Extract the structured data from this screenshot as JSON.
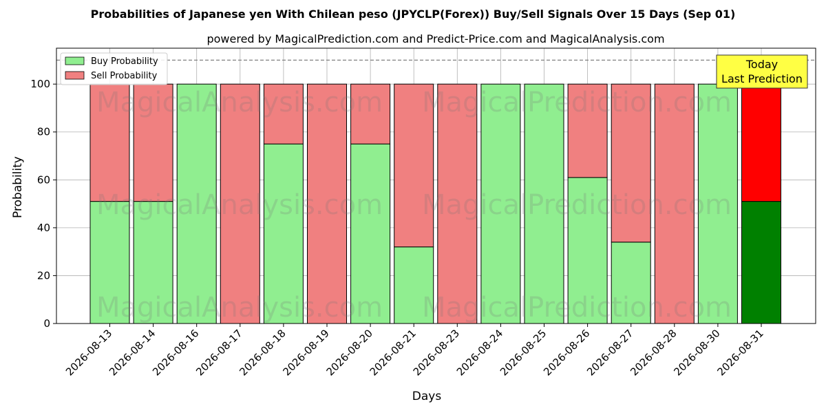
{
  "title": "Probabilities of Japanese yen With Chilean peso (JPYCLP(Forex)) Buy/Sell Signals Over 15 Days (Sep 01)",
  "subtitle": "powered by MagicalPrediction.com and Predict-Price.com and MagicalAnalysis.com",
  "watermarks": [
    "MagicalAnalysis.com",
    "MagicalPrediction.com"
  ],
  "annotation": {
    "line1": "Today",
    "line2": "Last Prediction"
  },
  "colors": {
    "buy": "#90ee90",
    "sell": "#f08080",
    "buy_today": "#008000",
    "sell_today": "#ff0000",
    "annotation_bg": "#ffff44"
  },
  "chart_data": {
    "type": "bar",
    "stacked": true,
    "xlabel": "Days",
    "ylabel": "Probability",
    "ylim": [
      0,
      115
    ],
    "yticks": [
      0,
      20,
      40,
      60,
      80,
      100
    ],
    "reference_line": 110,
    "grid": true,
    "legend_position": "top-left",
    "categories": [
      "2026-08-13",
      "2026-08-14",
      "2026-08-16",
      "2026-08-17",
      "2026-08-18",
      "2026-08-19",
      "2026-08-20",
      "2026-08-21",
      "2026-08-23",
      "2026-08-24",
      "2026-08-25",
      "2026-08-26",
      "2026-08-27",
      "2026-08-28",
      "2026-08-30",
      "2026-08-31"
    ],
    "series": [
      {
        "name": "Buy Probability",
        "values": [
          51,
          51,
          100,
          0,
          75,
          0,
          75,
          32,
          0,
          100,
          100,
          61,
          34,
          0,
          100,
          51
        ]
      },
      {
        "name": "Sell Probability",
        "values": [
          49,
          49,
          0,
          100,
          25,
          100,
          25,
          68,
          100,
          0,
          0,
          39,
          66,
          100,
          0,
          49
        ]
      }
    ]
  }
}
